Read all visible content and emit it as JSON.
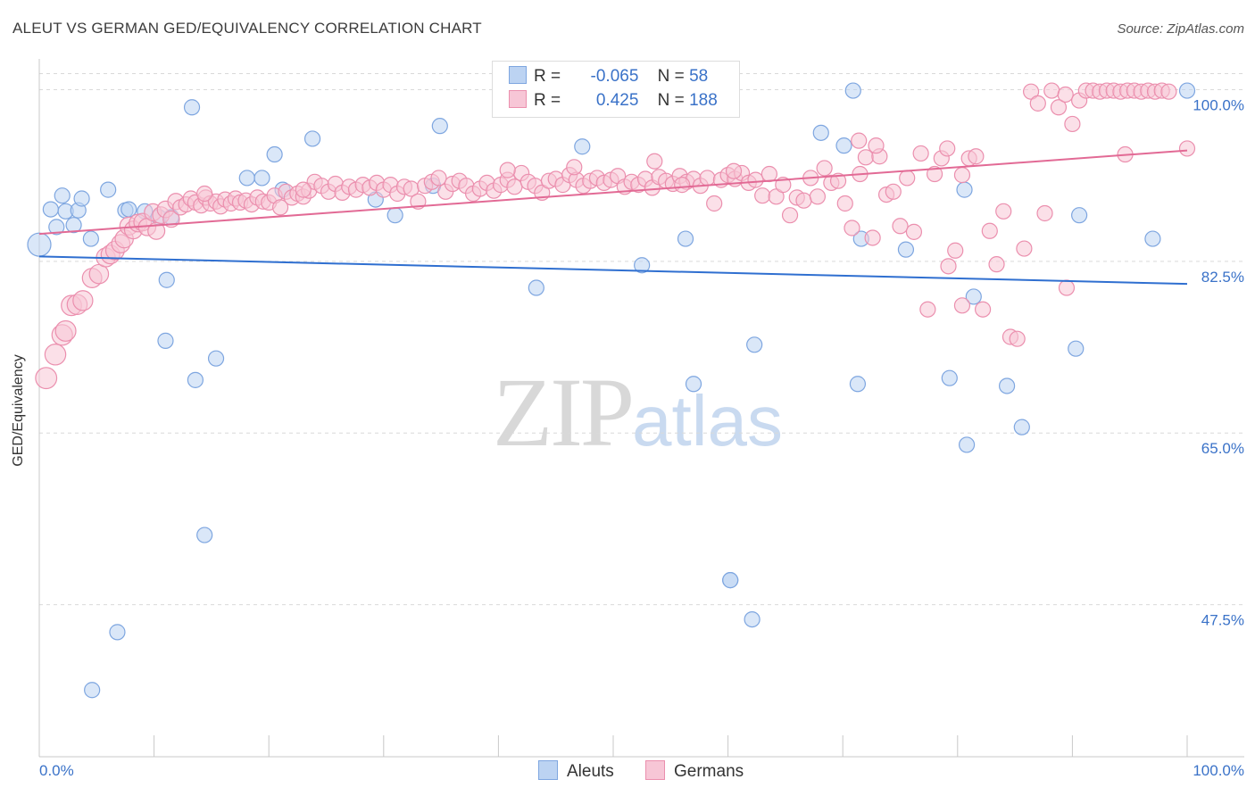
{
  "header": {
    "title": "ALEUT VS GERMAN GED/EQUIVALENCY CORRELATION CHART",
    "source": "Source: ZipAtlas.com"
  },
  "legend": {
    "aleut": {
      "r_label": "R =",
      "r_value": "-0.065",
      "n_label": "N =",
      "n_value": "58"
    },
    "german": {
      "r_label": "R =",
      "r_value": "0.425",
      "n_label": "N =",
      "n_value": "188"
    }
  },
  "bottom_legend": {
    "aleut": "Aleuts",
    "german": "Germans"
  },
  "watermark": {
    "zip": "ZIP",
    "atlas": "atlas"
  },
  "colors": {
    "aleut_fill": "#bcd3f2",
    "aleut_stroke": "#7ea6e0",
    "aleut_line": "#2f6fd0",
    "german_fill": "#f7c6d6",
    "german_stroke": "#eb8fae",
    "german_line": "#e26a95",
    "tick_label": "#3a72c8",
    "grid": "#d9d9d9"
  },
  "chart_data": {
    "type": "scatter",
    "title": "ALEUT VS GERMAN GED/EQUIVALENCY CORRELATION CHART",
    "xlabel": "",
    "ylabel": "GED/Equivalency",
    "xlim": [
      0,
      100
    ],
    "ylim": [
      32,
      103.5
    ],
    "x_tick_labels": [
      "0.0%",
      "100.0%"
    ],
    "y_ticks": [
      100,
      82.5,
      65,
      47.5
    ],
    "y_tick_labels": [
      "100.0%",
      "82.5%",
      "65.0%",
      "47.5%"
    ],
    "grid": true,
    "legend_position": "top-center",
    "series": [
      {
        "name": "Aleuts",
        "trend": {
          "x": [
            0,
            100
          ],
          "y": [
            83.0,
            80.2
          ]
        },
        "points": [
          [
            0,
            84.2
          ],
          [
            1,
            87.8
          ],
          [
            1.5,
            86.0
          ],
          [
            2,
            89.2
          ],
          [
            2.3,
            87.6
          ],
          [
            3,
            86.2
          ],
          [
            3.4,
            87.7
          ],
          [
            3.7,
            88.9
          ],
          [
            4.5,
            84.8
          ],
          [
            4.6,
            38.8
          ],
          [
            6,
            89.8
          ],
          [
            6.8,
            44.7
          ],
          [
            7.5,
            87.7
          ],
          [
            7.8,
            87.8
          ],
          [
            9.2,
            87.6
          ],
          [
            10.4,
            87.0
          ],
          [
            11,
            74.4
          ],
          [
            11.1,
            80.6
          ],
          [
            11.5,
            87.0
          ],
          [
            13.3,
            98.2
          ],
          [
            13.6,
            70.4
          ],
          [
            14.4,
            54.6
          ],
          [
            15.4,
            72.6
          ],
          [
            18.1,
            91.0
          ],
          [
            19.4,
            91.0
          ],
          [
            20.5,
            93.4
          ],
          [
            21.2,
            89.8
          ],
          [
            23.8,
            95.0
          ],
          [
            29.3,
            88.8
          ],
          [
            31,
            87.2
          ],
          [
            34.3,
            90.2
          ],
          [
            34.9,
            96.3
          ],
          [
            43.3,
            79.8
          ],
          [
            47.3,
            94.2
          ],
          [
            52.5,
            82.1
          ],
          [
            55.8,
            99.9
          ],
          [
            56.3,
            84.8
          ],
          [
            57,
            70.0
          ],
          [
            60.2,
            50.0
          ],
          [
            62.1,
            46.0
          ],
          [
            62.3,
            74.0
          ],
          [
            68.1,
            95.6
          ],
          [
            70.1,
            94.3
          ],
          [
            70.9,
            99.9
          ],
          [
            71.3,
            70.0
          ],
          [
            71.6,
            84.8
          ],
          [
            75.5,
            83.7
          ],
          [
            79.3,
            70.6
          ],
          [
            80.6,
            89.8
          ],
          [
            80.8,
            63.8
          ],
          [
            81.4,
            78.9
          ],
          [
            84.3,
            69.8
          ],
          [
            85.6,
            65.6
          ],
          [
            90.3,
            73.6
          ],
          [
            90.6,
            87.2
          ],
          [
            97,
            84.8
          ],
          [
            100,
            99.9
          ],
          [
            60.2,
            50.0
          ]
        ]
      },
      {
        "name": "Germans",
        "trend": {
          "x": [
            0,
            100
          ],
          "y": [
            85.3,
            93.8
          ]
        },
        "points": [
          [
            0.6,
            70.6
          ],
          [
            1.4,
            73.0
          ],
          [
            2,
            75.0
          ],
          [
            2.3,
            75.4
          ],
          [
            2.8,
            78.0
          ],
          [
            3.3,
            78.1
          ],
          [
            3.8,
            78.5
          ],
          [
            4.6,
            80.8
          ],
          [
            5.2,
            81.2
          ],
          [
            5.8,
            82.9
          ],
          [
            6.2,
            83.2
          ],
          [
            6.6,
            83.6
          ],
          [
            7.1,
            84.3
          ],
          [
            7.4,
            84.8
          ],
          [
            7.8,
            86.1
          ],
          [
            8.2,
            85.7
          ],
          [
            8.6,
            86.4
          ],
          [
            9.0,
            86.5
          ],
          [
            9.4,
            86.0
          ],
          [
            9.9,
            87.5
          ],
          [
            10.2,
            85.6
          ],
          [
            10.6,
            87.2
          ],
          [
            11.0,
            87.8
          ],
          [
            11.5,
            86.8
          ],
          [
            11.9,
            88.6
          ],
          [
            12.3,
            88.0
          ],
          [
            12.8,
            88.3
          ],
          [
            13.2,
            88.9
          ],
          [
            13.6,
            88.5
          ],
          [
            14.1,
            88.2
          ],
          [
            14.5,
            89.0
          ],
          [
            14.9,
            88.4
          ],
          [
            15.4,
            88.6
          ],
          [
            15.8,
            88.1
          ],
          [
            16.2,
            88.8
          ],
          [
            16.7,
            88.4
          ],
          [
            17.1,
            88.9
          ],
          [
            17.5,
            88.5
          ],
          [
            18.0,
            88.7
          ],
          [
            18.5,
            88.3
          ],
          [
            19.0,
            89.0
          ],
          [
            19.5,
            88.6
          ],
          [
            20.0,
            88.5
          ],
          [
            20.5,
            89.2
          ],
          [
            21.0,
            88.0
          ],
          [
            21.5,
            89.6
          ],
          [
            22.0,
            89.0
          ],
          [
            22.5,
            89.4
          ],
          [
            23.0,
            89.1
          ],
          [
            23.5,
            89.7
          ],
          [
            24.0,
            90.6
          ],
          [
            24.6,
            90.2
          ],
          [
            25.2,
            89.6
          ],
          [
            25.8,
            90.4
          ],
          [
            26.4,
            89.5
          ],
          [
            27.0,
            90.1
          ],
          [
            27.6,
            89.8
          ],
          [
            28.2,
            90.3
          ],
          [
            28.8,
            90.0
          ],
          [
            29.4,
            90.5
          ],
          [
            30.0,
            89.8
          ],
          [
            30.6,
            90.3
          ],
          [
            31.2,
            89.4
          ],
          [
            31.8,
            90.1
          ],
          [
            32.4,
            89.9
          ],
          [
            33.0,
            88.6
          ],
          [
            33.6,
            90.2
          ],
          [
            34.2,
            90.6
          ],
          [
            34.8,
            91.0
          ],
          [
            35.4,
            89.6
          ],
          [
            36.0,
            90.4
          ],
          [
            36.6,
            90.7
          ],
          [
            37.2,
            90.2
          ],
          [
            37.8,
            89.4
          ],
          [
            38.4,
            89.9
          ],
          [
            39.0,
            90.5
          ],
          [
            39.6,
            89.7
          ],
          [
            40.2,
            90.3
          ],
          [
            40.8,
            90.8
          ],
          [
            41.4,
            90.1
          ],
          [
            42.0,
            91.5
          ],
          [
            42.6,
            90.6
          ],
          [
            43.2,
            90.2
          ],
          [
            43.8,
            89.5
          ],
          [
            44.4,
            90.7
          ],
          [
            45.0,
            90.9
          ],
          [
            45.6,
            90.3
          ],
          [
            46.2,
            91.3
          ],
          [
            46.8,
            90.8
          ],
          [
            47.4,
            90.2
          ],
          [
            48.0,
            90.7
          ],
          [
            48.6,
            91.0
          ],
          [
            49.2,
            90.5
          ],
          [
            49.8,
            90.8
          ],
          [
            50.4,
            91.2
          ],
          [
            51.0,
            90.1
          ],
          [
            51.6,
            90.6
          ],
          [
            52.2,
            90.3
          ],
          [
            52.8,
            90.9
          ],
          [
            53.4,
            90.0
          ],
          [
            54.0,
            91.1
          ],
          [
            54.6,
            90.7
          ],
          [
            55.2,
            90.4
          ],
          [
            55.8,
            91.2
          ],
          [
            56.4,
            90.6
          ],
          [
            57.0,
            90.9
          ],
          [
            57.6,
            90.2
          ],
          [
            58.2,
            91.0
          ],
          [
            58.8,
            88.4
          ],
          [
            59.4,
            90.8
          ],
          [
            60.0,
            91.3
          ],
          [
            60.6,
            90.9
          ],
          [
            61.2,
            91.5
          ],
          [
            61.8,
            90.5
          ],
          [
            62.4,
            90.8
          ],
          [
            63.0,
            89.2
          ],
          [
            63.6,
            91.4
          ],
          [
            64.2,
            89.1
          ],
          [
            64.8,
            90.3
          ],
          [
            65.4,
            87.2
          ],
          [
            66.0,
            89.0
          ],
          [
            66.6,
            88.7
          ],
          [
            67.2,
            91.0
          ],
          [
            67.8,
            89.1
          ],
          [
            68.4,
            92.0
          ],
          [
            69.0,
            90.5
          ],
          [
            69.6,
            90.7
          ],
          [
            70.2,
            88.4
          ],
          [
            70.8,
            85.9
          ],
          [
            71.4,
            94.8
          ],
          [
            72.0,
            93.1
          ],
          [
            72.6,
            84.9
          ],
          [
            73.2,
            93.2
          ],
          [
            73.8,
            89.3
          ],
          [
            74.4,
            89.6
          ],
          [
            75.0,
            86.1
          ],
          [
            75.6,
            91.0
          ],
          [
            76.2,
            85.5
          ],
          [
            76.8,
            93.5
          ],
          [
            77.4,
            77.6
          ],
          [
            78.0,
            91.4
          ],
          [
            78.6,
            93.0
          ],
          [
            79.2,
            82.0
          ],
          [
            79.8,
            83.6
          ],
          [
            80.4,
            78.0
          ],
          [
            81.0,
            93.0
          ],
          [
            81.6,
            93.2
          ],
          [
            82.2,
            77.6
          ],
          [
            82.8,
            85.6
          ],
          [
            83.4,
            82.2
          ],
          [
            84.0,
            87.6
          ],
          [
            84.6,
            74.8
          ],
          [
            85.2,
            74.6
          ],
          [
            85.8,
            83.8
          ],
          [
            86.4,
            99.8
          ],
          [
            87.0,
            98.6
          ],
          [
            87.6,
            87.4
          ],
          [
            88.2,
            99.9
          ],
          [
            88.8,
            98.2
          ],
          [
            89.4,
            99.5
          ],
          [
            90.0,
            96.5
          ],
          [
            90.6,
            98.9
          ],
          [
            91.2,
            99.9
          ],
          [
            91.8,
            99.9
          ],
          [
            92.4,
            99.8
          ],
          [
            93.0,
            99.9
          ],
          [
            93.6,
            99.9
          ],
          [
            94.2,
            99.8
          ],
          [
            94.8,
            99.9
          ],
          [
            95.4,
            99.9
          ],
          [
            96.0,
            99.8
          ],
          [
            96.6,
            99.9
          ],
          [
            97.2,
            99.8
          ],
          [
            97.8,
            99.9
          ],
          [
            98.4,
            99.8
          ],
          [
            14.4,
            89.4
          ],
          [
            23.0,
            89.8
          ],
          [
            40.8,
            91.8
          ],
          [
            46.6,
            92.1
          ],
          [
            53.6,
            92.7
          ],
          [
            56.0,
            90.3
          ],
          [
            60.5,
            91.7
          ],
          [
            71.5,
            91.4
          ],
          [
            80.4,
            91.3
          ],
          [
            89.5,
            79.8
          ],
          [
            94.6,
            93.4
          ],
          [
            100,
            94.0
          ],
          [
            72.9,
            94.3
          ],
          [
            79.1,
            94.0
          ]
        ]
      }
    ]
  }
}
